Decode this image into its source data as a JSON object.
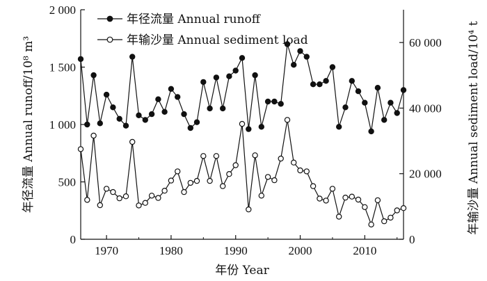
{
  "chart_data": {
    "type": "line",
    "xlabel": "年份 Year",
    "ylabel_left": "年径流量 Annual runoff/10⁸ m³",
    "ylabel_right": "年输沙量 Annual sediment load/10⁴ t",
    "xlim": [
      1966,
      2016
    ],
    "ylim_left": [
      0,
      2000
    ],
    "ylim_right": [
      0,
      70000
    ],
    "x_ticks": [
      1970,
      1980,
      1990,
      2000,
      2010
    ],
    "y_left_ticks": [
      0,
      500,
      1000,
      1500,
      2000
    ],
    "y_left_tick_labels": [
      "0",
      "500",
      "1 000",
      "1 500",
      "2 000"
    ],
    "y_right_ticks": [
      0,
      20000,
      40000,
      60000
    ],
    "y_right_tick_labels": [
      "0",
      "20 000",
      "40 000",
      "60 000"
    ],
    "x_tick_labels": [
      "1970",
      "1980",
      "1990",
      "2000",
      "2010"
    ],
    "legend_position": "top-left",
    "x": [
      1966,
      1967,
      1968,
      1969,
      1970,
      1971,
      1972,
      1973,
      1974,
      1975,
      1976,
      1977,
      1978,
      1979,
      1980,
      1981,
      1982,
      1983,
      1984,
      1985,
      1986,
      1987,
      1988,
      1989,
      1990,
      1991,
      1992,
      1993,
      1994,
      1995,
      1996,
      1997,
      1998,
      1999,
      2000,
      2001,
      2002,
      2003,
      2004,
      2005,
      2006,
      2007,
      2008,
      2009,
      2010,
      2011,
      2012,
      2013,
      2014,
      2015,
      2016
    ],
    "series": [
      {
        "name": "年径流量 Annual runoff",
        "axis": "left",
        "marker": "filled",
        "values": [
          1570,
          1000,
          1430,
          1010,
          1260,
          1150,
          1050,
          990,
          1590,
          1080,
          1040,
          1090,
          1220,
          1110,
          1310,
          1240,
          1090,
          970,
          1020,
          1370,
          1140,
          1410,
          1140,
          1420,
          1470,
          1580,
          960,
          1430,
          980,
          1200,
          1200,
          1180,
          1700,
          1520,
          1640,
          1590,
          1350,
          1350,
          1380,
          1500,
          980,
          1150,
          1380,
          1290,
          1190,
          940,
          1320,
          1040,
          1190,
          1100,
          1300
        ]
      },
      {
        "name": "年输沙量 Annual sediment load",
        "axis": "right",
        "marker": "open",
        "values": [
          27500,
          12000,
          31600,
          10400,
          15400,
          14400,
          12500,
          13100,
          29700,
          10300,
          11100,
          13300,
          12600,
          14800,
          17900,
          20700,
          14400,
          17200,
          17800,
          25400,
          17800,
          25400,
          16200,
          19900,
          22600,
          35200,
          9100,
          25600,
          13300,
          19000,
          18000,
          24600,
          36400,
          23400,
          21000,
          20700,
          16200,
          12400,
          11800,
          15400,
          6900,
          12700,
          13000,
          12100,
          9800,
          4500,
          11900,
          5500,
          6600,
          8800,
          9500
        ]
      }
    ]
  }
}
